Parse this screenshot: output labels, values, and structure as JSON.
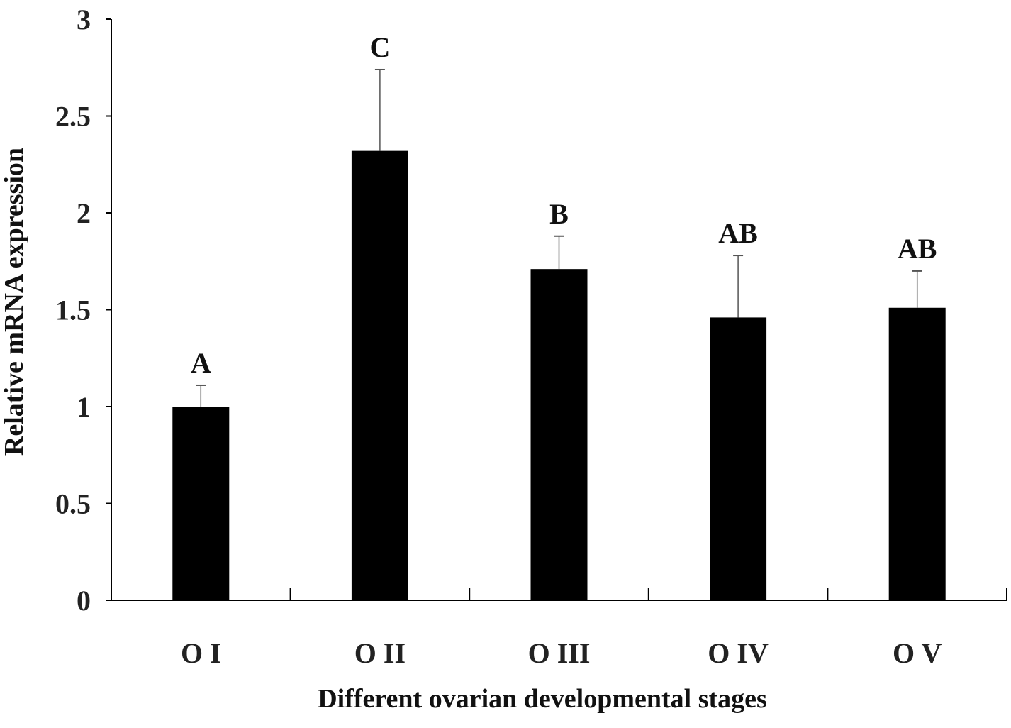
{
  "chart_data": {
    "type": "bar",
    "title": "",
    "xlabel": "Different ovarian developmental stages",
    "ylabel": "Relative mRNA expression",
    "categories": [
      "O I",
      "O II",
      "O III",
      "O IV",
      "O V"
    ],
    "values": [
      1.0,
      2.32,
      1.71,
      1.46,
      1.51
    ],
    "error_bars": [
      0.11,
      0.42,
      0.17,
      0.32,
      0.19
    ],
    "significance_labels": [
      "A",
      "C",
      "B",
      "AB",
      "AB"
    ],
    "ylim": [
      0,
      3
    ],
    "yticks": [
      "0",
      "0.5",
      "1",
      "1.5",
      "2",
      "2.5",
      "3"
    ],
    "grid": false,
    "legend": "none",
    "colors": {
      "bar": "#000000",
      "axis": "#000000",
      "error_bar": "#555555"
    }
  }
}
